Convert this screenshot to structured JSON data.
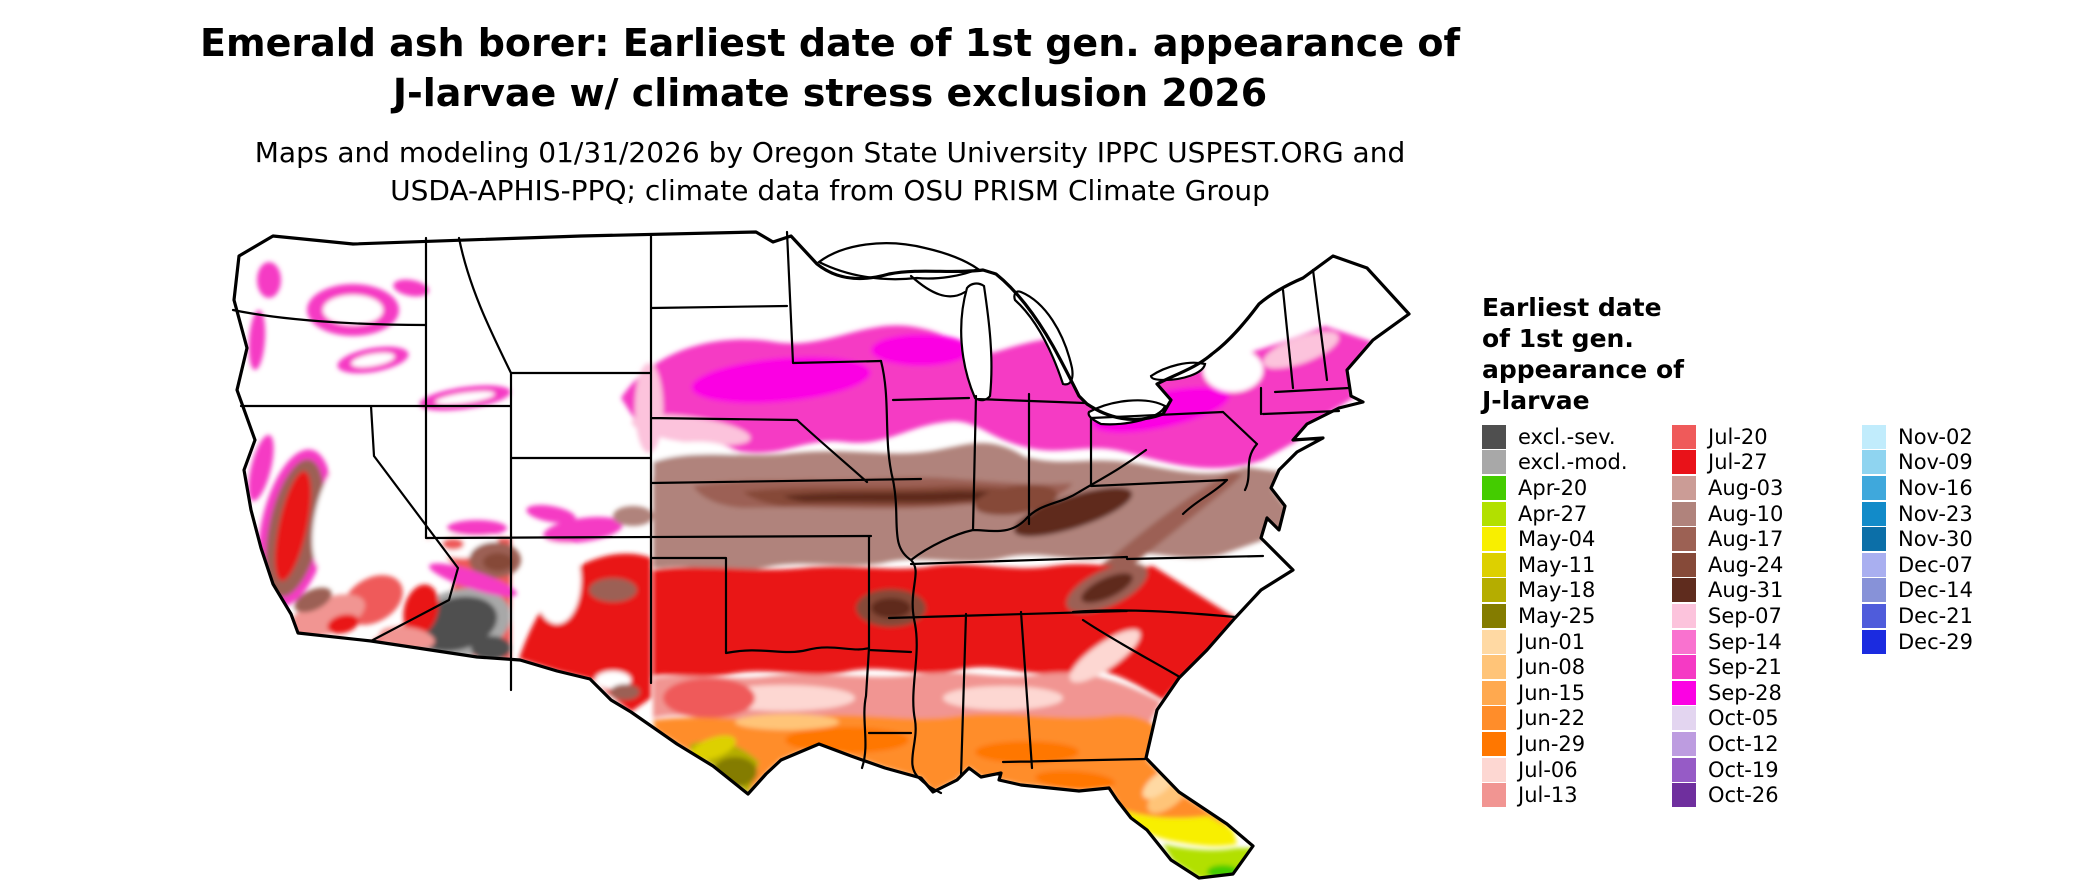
{
  "title": {
    "line1": "Emerald ash borer: Earliest date of 1st gen. appearance of",
    "line2": "J-larvae w/ climate stress exclusion 2026"
  },
  "subtitle": {
    "line1": "Maps and modeling 01/31/2026 by Oregon State University IPPC USPEST.ORG and",
    "line2": "USDA-APHIS-PPQ; climate data from OSU PRISM Climate Group"
  },
  "map": {
    "background": "#ffffff",
    "border_color": "#000000"
  },
  "legend": {
    "title_lines": [
      "Earliest date",
      "of 1st gen.",
      "appearance of",
      "J-larvae"
    ],
    "columns": [
      {
        "entries": [
          {
            "label": "excl.-sev.",
            "color": "#4f4f4f"
          },
          {
            "label": "excl.-mod.",
            "color": "#a8a8a8"
          },
          {
            "label": "Apr-20",
            "color": "#44cc00"
          },
          {
            "label": "Apr-27",
            "color": "#b2e000"
          },
          {
            "label": "May-04",
            "color": "#f8ef00"
          },
          {
            "label": "May-11",
            "color": "#ddd000"
          },
          {
            "label": "May-18",
            "color": "#b5ad00"
          },
          {
            "label": "May-25",
            "color": "#847c00"
          },
          {
            "label": "Jun-01",
            "color": "#ffd9a3"
          },
          {
            "label": "Jun-08",
            "color": "#ffc478"
          },
          {
            "label": "Jun-15",
            "color": "#ffa94f"
          },
          {
            "label": "Jun-22",
            "color": "#ff8d2a"
          },
          {
            "label": "Jun-29",
            "color": "#ff7700"
          },
          {
            "label": "Jul-06",
            "color": "#fdd7d2"
          },
          {
            "label": "Jul-13",
            "color": "#f19592"
          }
        ]
      },
      {
        "entries": [
          {
            "label": "Jul-20",
            "color": "#ef5a5a"
          },
          {
            "label": "Jul-27",
            "color": "#e91219"
          },
          {
            "label": "Aug-03",
            "color": "#cb9c96"
          },
          {
            "label": "Aug-10",
            "color": "#b0837c"
          },
          {
            "label": "Aug-17",
            "color": "#9c6154"
          },
          {
            "label": "Aug-24",
            "color": "#864a39"
          },
          {
            "label": "Aug-31",
            "color": "#5f2c1e"
          },
          {
            "label": "Sep-07",
            "color": "#fcc3dc"
          },
          {
            "label": "Sep-14",
            "color": "#f972cf"
          },
          {
            "label": "Sep-21",
            "color": "#f53ac4"
          },
          {
            "label": "Sep-28",
            "color": "#fb02e3"
          },
          {
            "label": "Oct-05",
            "color": "#e3d5f0"
          },
          {
            "label": "Oct-12",
            "color": "#bd9ce0"
          },
          {
            "label": "Oct-19",
            "color": "#965bc6"
          },
          {
            "label": "Oct-26",
            "color": "#6f2f9e"
          }
        ]
      },
      {
        "entries": [
          {
            "label": "Nov-02",
            "color": "#c1ecfc"
          },
          {
            "label": "Nov-09",
            "color": "#8fd4f0"
          },
          {
            "label": "Nov-16",
            "color": "#3fa8dc"
          },
          {
            "label": "Nov-23",
            "color": "#128bc9"
          },
          {
            "label": "Nov-30",
            "color": "#0c6fa8"
          },
          {
            "label": "Dec-07",
            "color": "#a9aff0"
          },
          {
            "label": "Dec-14",
            "color": "#8792d8"
          },
          {
            "label": "Dec-21",
            "color": "#4f5cdb"
          },
          {
            "label": "Dec-29",
            "color": "#1b2be0"
          }
        ]
      }
    ]
  }
}
